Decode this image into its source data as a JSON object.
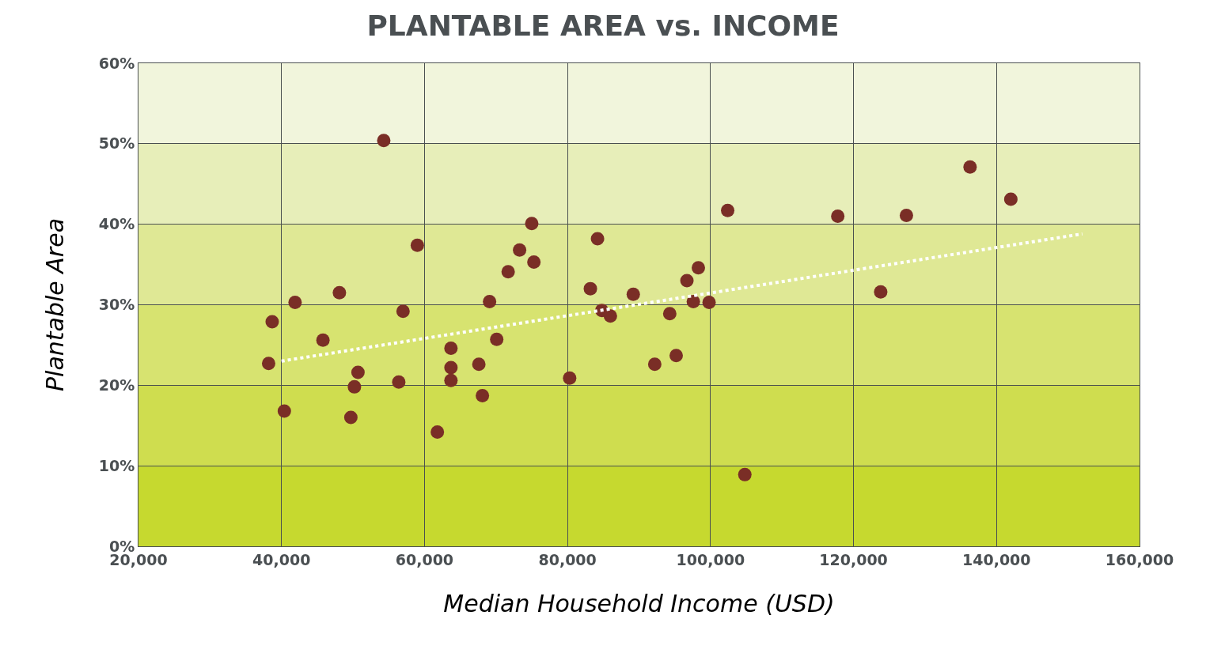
{
  "chart_data": {
    "type": "scatter",
    "title": "PLANTABLE AREA vs. INCOME",
    "xlabel": "Median Household Income (USD)",
    "ylabel": "Plantable Area",
    "xlim": [
      20000,
      160000
    ],
    "ylim": [
      0,
      60
    ],
    "xticks": [
      {
        "value": 20000,
        "label": "20,000"
      },
      {
        "value": 40000,
        "label": "40,000"
      },
      {
        "value": 60000,
        "label": "60,000"
      },
      {
        "value": 80000,
        "label": "80,000"
      },
      {
        "value": 100000,
        "label": "100,000"
      },
      {
        "value": 120000,
        "label": "120,000"
      },
      {
        "value": 140000,
        "label": "140,000"
      },
      {
        "value": 160000,
        "label": "160,000"
      }
    ],
    "yticks": [
      {
        "value": 0,
        "label": "0%"
      },
      {
        "value": 10,
        "label": "10%"
      },
      {
        "value": 20,
        "label": "20%"
      },
      {
        "value": 30,
        "label": "30%"
      },
      {
        "value": 40,
        "label": "40%"
      },
      {
        "value": 50,
        "label": "50%"
      },
      {
        "value": 60,
        "label": "60%"
      }
    ],
    "grid": true,
    "bands": [
      {
        "axis": "y",
        "from": 0,
        "to": 10,
        "color": "#c6d92f"
      },
      {
        "axis": "y",
        "from": 10,
        "to": 20,
        "color": "#cfdd4f"
      },
      {
        "axis": "y",
        "from": 20,
        "to": 30,
        "color": "#d7e370"
      },
      {
        "axis": "y",
        "from": 30,
        "to": 40,
        "color": "#dfe895"
      },
      {
        "axis": "y",
        "from": 40,
        "to": 50,
        "color": "#e7eeb9"
      },
      {
        "axis": "y",
        "from": 50,
        "to": 60,
        "color": "#f1f5dc"
      }
    ],
    "series": [
      {
        "marker": "circle",
        "color": "#7a2e26",
        "x": [
          38200,
          38700,
          40400,
          41900,
          45800,
          48100,
          49700,
          50200,
          50700,
          54300,
          56400,
          57000,
          59000,
          61800,
          63700,
          63700,
          63700,
          67600,
          68100,
          69100,
          70100,
          71700,
          73300,
          75000,
          75300,
          80300,
          83200,
          84200,
          84800,
          86000,
          89200,
          92200,
          94300,
          95200,
          96700,
          97600,
          98300,
          99800,
          102400,
          104800,
          117800,
          123800,
          127400,
          136300,
          142000
        ],
        "values": [
          22.7,
          27.9,
          16.8,
          30.3,
          25.6,
          31.5,
          16.0,
          19.8,
          21.6,
          50.4,
          20.4,
          29.2,
          37.4,
          14.2,
          24.6,
          22.2,
          20.6,
          22.6,
          18.7,
          30.4,
          25.7,
          34.1,
          36.8,
          40.1,
          35.3,
          20.9,
          32.0,
          38.2,
          29.3,
          28.6,
          31.3,
          22.6,
          28.9,
          23.7,
          33.0,
          30.4,
          34.6,
          30.3,
          41.7,
          8.9,
          41.0,
          31.6,
          41.1,
          47.1,
          43.1
        ]
      },
      {
        "type": "line",
        "color": "#ffffff",
        "line_style": "dotted",
        "marker": "none",
        "x": [
          40000,
          152000
        ],
        "values": [
          23.0,
          38.8
        ]
      }
    ]
  }
}
